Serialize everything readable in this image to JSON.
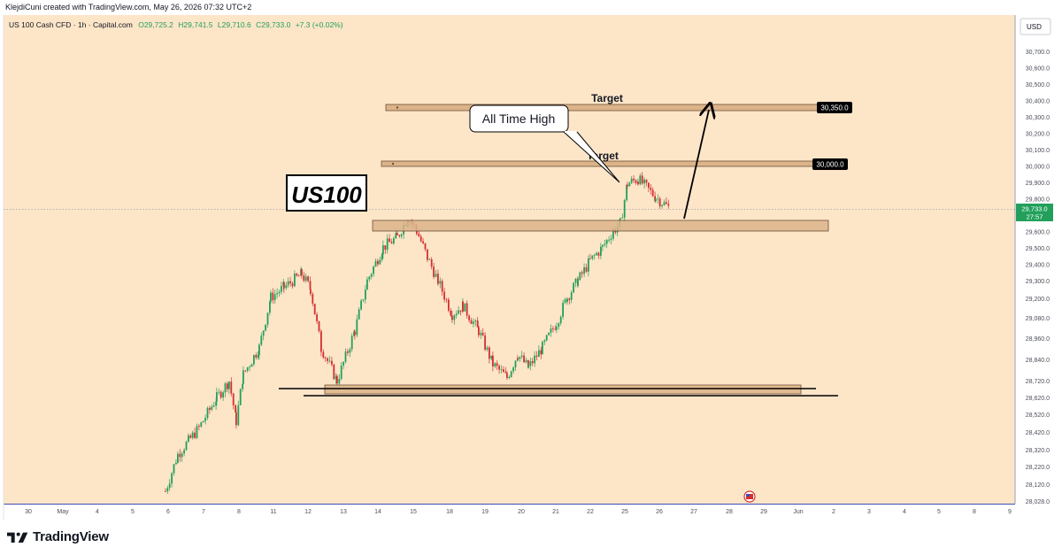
{
  "header": {
    "creator": "KlejdiCuni created with TradingView.com, May 26, 2026 07:32 UTC+2"
  },
  "symbol_line": {
    "name": "US 100 Cash CFD · 1h · Capital.com",
    "open": "O29,725.2",
    "high": "H29,741.5",
    "low": "L29,710.6",
    "close": "C29,733.0",
    "change": "+7.3 (+0.02%)"
  },
  "currency": "USD",
  "watermark": "US100",
  "annotations": {
    "ath_callout": "All Time High",
    "target_1": "Target",
    "target_2": "Target",
    "target_1_price": "30,350.0",
    "target_2_price": "30,000.0",
    "last_price": "29,733.0",
    "countdown": "27:57"
  },
  "brand": "TradingView",
  "colors": {
    "background": "#fde5c8",
    "up": "#22a05b",
    "down": "#d32f2f",
    "zone_fill": "#dcb48a",
    "zone_stroke": "#6b4f36",
    "price_badge": "#000000",
    "last_price_badge": "#22a05b"
  },
  "chart_data": {
    "type": "line",
    "title": "US 100 Cash CFD · 1h · Capital.com",
    "y_axis_side": "right",
    "ylim": [
      28028,
      30800
    ],
    "y_ticks": [
      "30,700.0",
      "30,600.0",
      "30,500.0",
      "30,400.0",
      "30,300.0",
      "30,200.0",
      "30,100.0",
      "30,000.0",
      "29,900.0",
      "29,800.0",
      "29,700.0",
      "29,600.0",
      "29,500.0",
      "29,400.0",
      "29,300.0",
      "29,200.0",
      "29,080.0",
      "28,960.0",
      "28,840.0",
      "28,720.0",
      "28,620.0",
      "28,520.0",
      "28,420.0",
      "28,320.0",
      "28,220.0",
      "28,120.0",
      "28,028.0"
    ],
    "x_ticks": [
      "30",
      "May",
      "4",
      "5",
      "6",
      "7",
      "8",
      "11",
      "12",
      "13",
      "14",
      "15",
      "18",
      "19",
      "20",
      "21",
      "22",
      "25",
      "26",
      "27",
      "28",
      "29",
      "Jun",
      "2",
      "3",
      "4",
      "5",
      "8",
      "9"
    ],
    "series": [
      {
        "name": "US 100 Cash CFD",
        "x": [
          "May 6",
          "May 6",
          "May 7",
          "May 7",
          "May 8",
          "May 8",
          "May 8",
          "May 11",
          "May 11",
          "May 11",
          "May 12",
          "May 12",
          "May 12",
          "May 13",
          "May 13",
          "May 13",
          "May 14",
          "May 14",
          "May 14",
          "May 15",
          "May 15",
          "May 15",
          "May 18",
          "May 18",
          "May 18",
          "May 19",
          "May 19",
          "May 19",
          "May 20",
          "May 20",
          "May 21",
          "May 21",
          "May 21",
          "May 22",
          "May 22",
          "May 22",
          "May 25",
          "May 25",
          "May 25",
          "May 26",
          "May 26"
        ],
        "y": [
          28040,
          28260,
          28420,
          28600,
          28700,
          28460,
          28740,
          28900,
          29200,
          29260,
          29340,
          29250,
          28900,
          28700,
          29000,
          29300,
          29500,
          29560,
          29680,
          29600,
          29440,
          29300,
          29100,
          29150,
          29000,
          28800,
          28720,
          28860,
          28780,
          28900,
          29050,
          29200,
          29300,
          29420,
          29500,
          29600,
          29640,
          29880,
          29910,
          29800,
          29733
        ]
      }
    ],
    "levels": [
      {
        "name": "Target",
        "value": 30350
      },
      {
        "name": "Target",
        "value": 30000
      },
      {
        "value": 29640
      },
      {
        "value": 28680
      }
    ],
    "last_price": 29733.0
  }
}
